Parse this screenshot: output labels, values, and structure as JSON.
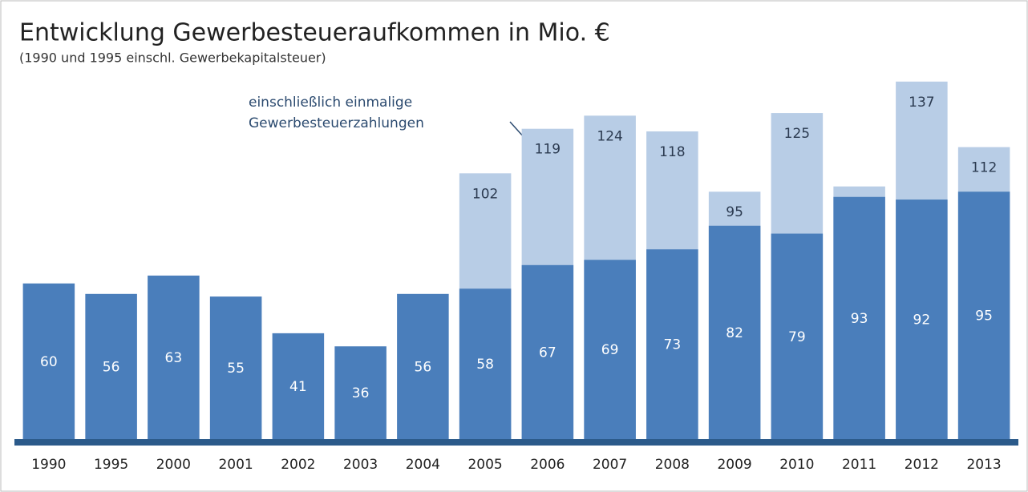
{
  "chart_data": {
    "type": "bar",
    "title": "Entwicklung Gewerbesteueraufkommen in Mio. €",
    "subtitle": "(1990 und 1995 einschl. Gewerbekapitalsteuer)",
    "categories": [
      "1990",
      "1995",
      "2000",
      "2001",
      "2002",
      "2003",
      "2004",
      "2005",
      "2006",
      "2007",
      "2008",
      "2009",
      "2010",
      "2011",
      "2012",
      "2013"
    ],
    "series": [
      {
        "color": "#4a7ebb",
        "values": [
          60,
          56,
          63,
          55,
          41,
          36,
          56,
          58,
          67,
          69,
          73,
          82,
          79,
          93,
          92,
          95
        ]
      },
      {
        "name": "einschließlich einmalige Gewerbesteuerzahlungen",
        "color": "#b8cde6",
        "values": [
          null,
          null,
          null,
          null,
          null,
          null,
          null,
          102,
          119,
          124,
          118,
          95,
          125,
          97,
          137,
          112
        ]
      }
    ],
    "ylim": [
      0,
      140
    ]
  }
}
